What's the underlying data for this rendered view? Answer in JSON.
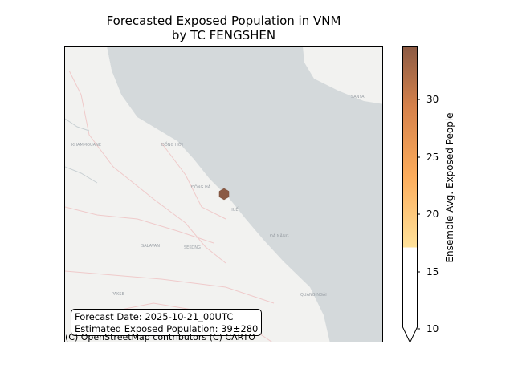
{
  "title": {
    "line1": "Forecasted Exposed Population in VNM",
    "line2": "by TC FENGSHEN"
  },
  "map": {
    "place_labels": [
      "KHAMMOUANE",
      "SALAVAN",
      "SEKONG",
      "HUẾ",
      "ĐÀ NẴNG",
      "QUẢNG NGÃI",
      "SANYA",
      "ĐỒNG HỚI",
      "ĐÔNG HÀ",
      "PAKSE"
    ],
    "hexbin": {
      "value": 35,
      "color": "#8b5a44"
    },
    "colors": {
      "sea": "#d4d9db",
      "land": "#f2f2f0",
      "road": "#f0c8c8"
    }
  },
  "info_box": {
    "forecast_date": "Forecast Date: 2025-10-21_00UTC",
    "exposed_population": "Estimated Exposed Population: 39±280"
  },
  "attribution": "(C) OpenStreetMap contributors (C) CARTO",
  "colorbar": {
    "label": "Ensemble Avg. Exposed People",
    "ticks": [
      "10",
      "15",
      "20",
      "25",
      "30"
    ],
    "tick_values": [
      10,
      15,
      20,
      25,
      30
    ],
    "range": [
      10,
      35
    ],
    "extend": "min",
    "colors": [
      "#ffffff",
      "#ffe29a",
      "#fdad5c",
      "#d5814b",
      "#8b5a44"
    ]
  }
}
